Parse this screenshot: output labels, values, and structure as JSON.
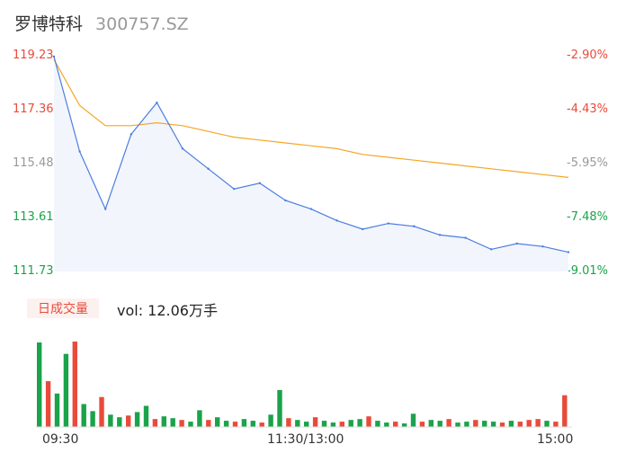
{
  "header": {
    "name": "罗博特科",
    "code": "300757.SZ"
  },
  "price_axis": [
    "119.23",
    "117.36",
    "115.48",
    "113.61",
    "111.73"
  ],
  "pct_axis": [
    "-2.90%",
    "-4.43%",
    "-5.95%",
    "-7.48%",
    "-9.01%"
  ],
  "volume": {
    "tag": "日成交量",
    "info": "vol: 12.06万手"
  },
  "time_axis": [
    "09:30",
    "11:30/13:00",
    "15:00"
  ],
  "colors": {
    "price_line": "#4a7de0",
    "avg_line": "#f5a623",
    "up": "#e84b3a",
    "down": "#1aa34a",
    "area": "#f2f5fc"
  },
  "chart_data": {
    "type": "line",
    "x": [
      "09:30",
      "09:35",
      "09:40",
      "09:45",
      "09:50",
      "10:00",
      "10:10",
      "10:20",
      "10:30",
      "10:45",
      "11:00",
      "11:15",
      "11:30/13:00",
      "13:15",
      "13:30",
      "13:45",
      "14:00",
      "14:15",
      "14:30",
      "14:45",
      "15:00"
    ],
    "series": [
      {
        "values": [
          119.2,
          115.9,
          113.9,
          116.5,
          117.6,
          116.0,
          115.3,
          114.6,
          114.8,
          114.2,
          113.9,
          113.5,
          113.2,
          113.4,
          113.3,
          113.0,
          112.9,
          112.5,
          112.7,
          112.6,
          112.4
        ]
      },
      {
        "values": [
          119.1,
          117.5,
          116.8,
          116.8,
          116.9,
          116.8,
          116.6,
          116.4,
          116.3,
          116.2,
          116.1,
          116.0,
          115.8,
          115.7,
          115.6,
          115.5,
          115.4,
          115.3,
          115.2,
          115.1,
          115.0
        ]
      }
    ],
    "ylim": [
      111.73,
      119.23
    ],
    "volume_values": [
      9.6,
      5.2,
      3.8,
      8.3,
      9.7,
      2.6,
      1.8,
      3.4,
      1.4,
      1.1,
      1.3,
      1.7,
      2.4,
      0.9,
      1.2,
      1.0,
      0.8,
      0.6,
      1.9,
      0.8,
      1.1,
      0.7,
      0.6,
      0.9,
      0.7,
      0.5,
      1.4,
      4.2,
      1.0,
      0.8,
      0.6,
      1.1,
      0.7,
      0.5,
      0.6,
      0.8,
      0.9,
      1.2,
      0.7,
      0.5,
      0.6,
      0.4,
      1.5,
      0.6,
      0.8,
      0.7,
      0.9,
      0.5,
      0.6,
      0.8,
      0.7,
      0.6,
      0.5,
      0.7,
      0.6,
      0.8,
      0.9,
      0.7,
      0.6,
      3.6
    ]
  }
}
